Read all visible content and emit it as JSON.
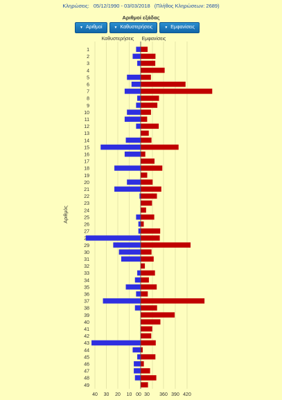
{
  "header": {
    "label": "Κληρώσεις:",
    "range": "05/12/1990 - 03/03/2018",
    "count": "(Πλήθος Κληρώσεων: 2689)"
  },
  "subtitle": "Αριθμοί εξάδας",
  "buttons": [
    {
      "label": "Αριθμοί",
      "icon": "sort-arrow-icon"
    },
    {
      "label": "Καθυστερήσεις",
      "icon": "sort-arrow-icon"
    },
    {
      "label": "Εμφανίσεις",
      "icon": "sort-arrow-icon"
    }
  ],
  "colors": {
    "background": "#fefebf",
    "delay_bar": "#2f2fe0",
    "appearance_bar": "#c00000",
    "button": "#1a7bc0",
    "header_text": "#1f4fa5"
  },
  "chart_data": {
    "type": "bar",
    "orientation": "horizontal",
    "ylabel": "Αριθμός",
    "left_label": "Καθυστερήσεις",
    "right_label": "Εμφανίσεις",
    "categories": [
      1,
      2,
      3,
      4,
      5,
      6,
      7,
      8,
      9,
      10,
      11,
      12,
      13,
      14,
      15,
      16,
      17,
      18,
      19,
      20,
      21,
      22,
      23,
      24,
      25,
      26,
      27,
      28,
      29,
      30,
      31,
      32,
      33,
      34,
      35,
      36,
      37,
      38,
      39,
      40,
      41,
      42,
      43,
      44,
      45,
      46,
      47,
      48,
      49
    ],
    "series": [
      {
        "name": "Καθυστερήσεις",
        "values": [
          4,
          7,
          3,
          0,
          12,
          8,
          14,
          3,
          4,
          12,
          14,
          4,
          0,
          13,
          35,
          14,
          0,
          23,
          0,
          12,
          23,
          1,
          0,
          0,
          4,
          2,
          2,
          48,
          24,
          19,
          17,
          0,
          3,
          5,
          13,
          4,
          33,
          5,
          0,
          0,
          0,
          0,
          43,
          7,
          3,
          6,
          6,
          5,
          0
        ]
      },
      {
        "name": "Εμφανίσεις",
        "values": [
          318,
          214,
          211,
          362,
          148,
          416,
          485,
          265,
          241,
          149,
          94,
          261,
          321,
          328,
          398,
          312,
          200,
          356,
          317,
          173,
          298,
          235,
          164,
          314,
          196,
          308,
          282,
          276,
          429,
          157,
          188,
          61,
          337,
          119,
          232,
          103,
          465,
          237,
          388,
          285,
          330,
          153,
          218,
          300,
          213,
          46,
          136,
          226,
          319
        ]
      }
    ],
    "x_ticks_left": [
      "40",
      "30",
      "20",
      "10",
      "00"
    ],
    "x_ticks_right": [
      "30",
      "360",
      "390",
      "420"
    ],
    "delay_max": 40,
    "appearance_axis": [
      300,
      420
    ],
    "grid": true
  }
}
